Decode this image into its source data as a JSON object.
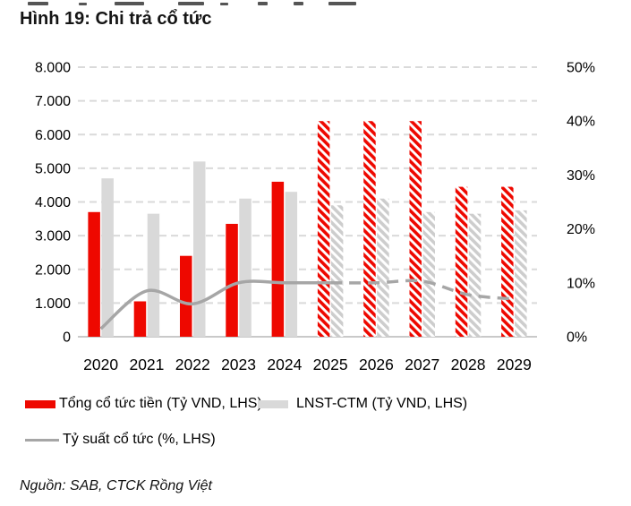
{
  "page": {
    "title": "Hình 19: Chi trả cổ tức",
    "source": "Nguồn: SAB, CTCK Rồng Việt"
  },
  "colors": {
    "red": "#EE0800",
    "gray_bar": "#D9D9D9",
    "hatch_gray": "#CDCDCD",
    "line": "#A6A6A6",
    "gridline": "#DADADA",
    "baseline": "#C9C9C9",
    "axis_text": "#000000"
  },
  "legend": {
    "cash": "Tổng cổ tức tiền (Tỷ VND, LHS)",
    "lnst": "LNST-CTM (Tỷ VND, LHS)",
    "yield": "Tỷ suất cổ tức (%, LHS)"
  },
  "chart_data": {
    "type": "bar",
    "subtype": "grouped bars with overlaid line, forecast years hatched/dashed",
    "title": "Hình 19: Chi trả cổ tức",
    "categories": [
      "2020",
      "2021",
      "2022",
      "2023",
      "2024",
      "2025",
      "2026",
      "2027",
      "2028",
      "2029"
    ],
    "series": [
      {
        "name": "Tổng cổ tức tiền (Tỷ VND, LHS)",
        "type": "bar",
        "axis": "left",
        "color_key": "red",
        "values": [
          3700,
          1050,
          2400,
          3350,
          4600,
          6400,
          6400,
          6400,
          4450,
          4450
        ],
        "hatched_from_index": 5
      },
      {
        "name": "LNST-CTM (Tỷ VND, LHS)",
        "type": "bar",
        "axis": "left",
        "color_key": "gray_bar",
        "values": [
          4700,
          3650,
          5200,
          4100,
          4300,
          3900,
          4100,
          3700,
          3650,
          3750
        ],
        "hatched_from_index": 5
      },
      {
        "name": "Tỷ suất cổ tức (%, LHS)",
        "type": "line",
        "axis": "right",
        "color_key": "line",
        "values_pct": [
          1.5,
          8.5,
          6.1,
          10.0,
          10.0,
          10.0,
          10.0,
          10.3,
          7.8,
          7.0
        ],
        "dashed_from_index": 5
      }
    ],
    "left_axis": {
      "min": 0,
      "max": 8000,
      "step": 1000,
      "tick_labels": [
        "0",
        "1.000",
        "2.000",
        "3.000",
        "4.000",
        "5.000",
        "6.000",
        "7.000",
        "8.000"
      ]
    },
    "right_axis": {
      "min": 0,
      "max": 50,
      "step": 10,
      "tick_labels": [
        "0%",
        "10%",
        "20%",
        "30%",
        "40%",
        "50%"
      ]
    },
    "grid": "horizontal dashed gridlines",
    "legend_position": "bottom-left, two rows"
  }
}
